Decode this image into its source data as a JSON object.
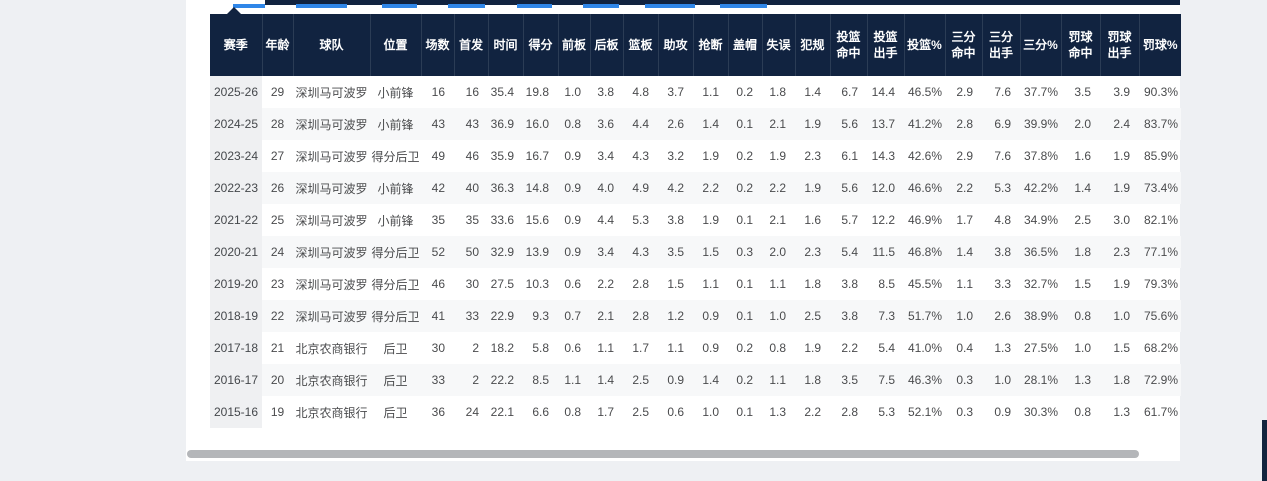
{
  "page": {
    "background_color": "#eef0f3",
    "card_color": "#ffffff",
    "accent_blue": "#2f86e8",
    "header_navy": "#112340",
    "scrollbar_gray": "#b4b6b9"
  },
  "nav": {
    "underline_color": "#2f86e8"
  },
  "chart_data": {
    "type": "table",
    "title": "",
    "columns": [
      "赛季",
      "年龄",
      "球队",
      "位置",
      "场数",
      "首发",
      "时间",
      "得分",
      "前板",
      "后板",
      "篮板",
      "助攻",
      "抢断",
      "盖帽",
      "失误",
      "犯规",
      "投篮命中",
      "投篮出手",
      "投篮%",
      "三分命中",
      "三分出手",
      "三分%",
      "罚球命中",
      "罚球出手",
      "罚球%"
    ],
    "rows": [
      [
        "2025-26",
        "29",
        "深圳马可波罗",
        "小前锋",
        "16",
        "16",
        "35.4",
        "19.8",
        "1.0",
        "3.8",
        "4.8",
        "3.7",
        "1.1",
        "0.2",
        "1.8",
        "1.4",
        "6.7",
        "14.4",
        "46.5%",
        "2.9",
        "7.6",
        "37.7%",
        "3.5",
        "3.9",
        "90.3%"
      ],
      [
        "2024-25",
        "28",
        "深圳马可波罗",
        "小前锋",
        "43",
        "43",
        "36.9",
        "16.0",
        "0.8",
        "3.6",
        "4.4",
        "2.6",
        "1.4",
        "0.1",
        "2.1",
        "1.9",
        "5.6",
        "13.7",
        "41.2%",
        "2.8",
        "6.9",
        "39.9%",
        "2.0",
        "2.4",
        "83.7%"
      ],
      [
        "2023-24",
        "27",
        "深圳马可波罗",
        "得分后卫",
        "49",
        "46",
        "35.9",
        "16.7",
        "0.9",
        "3.4",
        "4.3",
        "3.2",
        "1.9",
        "0.2",
        "1.9",
        "2.3",
        "6.1",
        "14.3",
        "42.6%",
        "2.9",
        "7.6",
        "37.8%",
        "1.6",
        "1.9",
        "85.9%"
      ],
      [
        "2022-23",
        "26",
        "深圳马可波罗",
        "小前锋",
        "42",
        "40",
        "36.3",
        "14.8",
        "0.9",
        "4.0",
        "4.9",
        "4.2",
        "2.2",
        "0.2",
        "2.2",
        "1.9",
        "5.6",
        "12.0",
        "46.6%",
        "2.2",
        "5.3",
        "42.2%",
        "1.4",
        "1.9",
        "73.4%"
      ],
      [
        "2021-22",
        "25",
        "深圳马可波罗",
        "小前锋",
        "35",
        "35",
        "33.6",
        "15.6",
        "0.9",
        "4.4",
        "5.3",
        "3.8",
        "1.9",
        "0.1",
        "2.1",
        "1.6",
        "5.7",
        "12.2",
        "46.9%",
        "1.7",
        "4.8",
        "34.9%",
        "2.5",
        "3.0",
        "82.1%"
      ],
      [
        "2020-21",
        "24",
        "深圳马可波罗",
        "得分后卫",
        "52",
        "50",
        "32.9",
        "13.9",
        "0.9",
        "3.4",
        "4.3",
        "3.5",
        "1.5",
        "0.3",
        "2.0",
        "2.3",
        "5.4",
        "11.5",
        "46.8%",
        "1.4",
        "3.8",
        "36.5%",
        "1.8",
        "2.3",
        "77.1%"
      ],
      [
        "2019-20",
        "23",
        "深圳马可波罗",
        "得分后卫",
        "46",
        "30",
        "27.5",
        "10.3",
        "0.6",
        "2.2",
        "2.8",
        "1.5",
        "1.1",
        "0.1",
        "1.1",
        "1.8",
        "3.8",
        "8.5",
        "45.5%",
        "1.1",
        "3.3",
        "32.7%",
        "1.5",
        "1.9",
        "79.3%"
      ],
      [
        "2018-19",
        "22",
        "深圳马可波罗",
        "得分后卫",
        "41",
        "33",
        "22.9",
        "9.3",
        "0.7",
        "2.1",
        "2.8",
        "1.2",
        "0.9",
        "0.1",
        "1.0",
        "2.5",
        "3.8",
        "7.3",
        "51.7%",
        "1.0",
        "2.6",
        "38.9%",
        "0.8",
        "1.0",
        "75.6%"
      ],
      [
        "2017-18",
        "21",
        "北京农商银行",
        "后卫",
        "30",
        "2",
        "18.2",
        "5.8",
        "0.6",
        "1.1",
        "1.7",
        "1.1",
        "0.9",
        "0.2",
        "0.8",
        "1.9",
        "2.2",
        "5.4",
        "41.0%",
        "0.4",
        "1.3",
        "27.5%",
        "1.0",
        "1.5",
        "68.2%"
      ],
      [
        "2016-17",
        "20",
        "北京农商银行",
        "后卫",
        "33",
        "2",
        "22.2",
        "8.5",
        "1.1",
        "1.4",
        "2.5",
        "0.9",
        "1.4",
        "0.2",
        "1.1",
        "1.8",
        "3.5",
        "7.5",
        "46.3%",
        "0.3",
        "1.0",
        "28.1%",
        "1.3",
        "1.8",
        "72.9%"
      ],
      [
        "2015-16",
        "19",
        "北京农商银行",
        "后卫",
        "36",
        "24",
        "22.1",
        "6.6",
        "0.8",
        "1.7",
        "2.5",
        "0.6",
        "1.0",
        "0.1",
        "1.3",
        "2.2",
        "2.8",
        "5.3",
        "52.1%",
        "0.3",
        "0.9",
        "30.3%",
        "0.8",
        "1.3",
        "61.7%"
      ]
    ]
  }
}
